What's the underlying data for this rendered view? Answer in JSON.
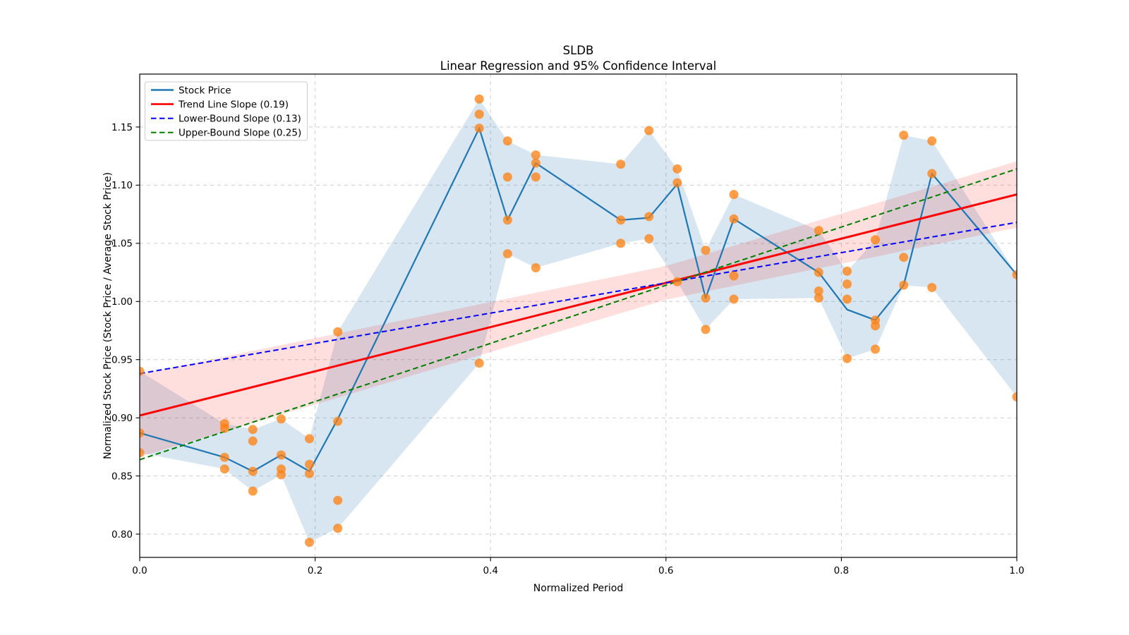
{
  "title": {
    "line1": "SLDB",
    "line2": "Linear Regression and 95% Confidence Interval"
  },
  "axes": {
    "xlabel": "Normalized Period",
    "ylabel": "Normalized Stock Price (Stock Price / Average Stock Price)",
    "xlim": [
      0.0,
      1.0
    ],
    "ylim": [
      0.78,
      1.1955
    ],
    "grid": true,
    "x_ticks": [
      {
        "v": 0.0,
        "label": "0.0"
      },
      {
        "v": 0.2,
        "label": "0.2"
      },
      {
        "v": 0.4,
        "label": "0.4"
      },
      {
        "v": 0.6,
        "label": "0.6"
      },
      {
        "v": 0.8,
        "label": "0.8"
      },
      {
        "v": 1.0,
        "label": "1.0"
      }
    ],
    "y_ticks": [
      {
        "v": 0.8,
        "label": "0.80"
      },
      {
        "v": 0.85,
        "label": "0.85"
      },
      {
        "v": 0.9,
        "label": "0.90"
      },
      {
        "v": 0.95,
        "label": "0.95"
      },
      {
        "v": 1.0,
        "label": "1.00"
      },
      {
        "v": 1.05,
        "label": "1.05"
      },
      {
        "v": 1.1,
        "label": "1.10"
      },
      {
        "v": 1.15,
        "label": "1.15"
      }
    ]
  },
  "legend": {
    "position": "upper-left",
    "items": [
      {
        "label": "Stock Price",
        "color": "#1f77b4",
        "dash": "solid"
      },
      {
        "label": "Trend Line Slope (0.19)",
        "color": "#ff0000",
        "dash": "solid"
      },
      {
        "label": "Lower-Bound Slope (0.13)",
        "color": "#0000ff",
        "dash": "dashed"
      },
      {
        "label": "Upper-Bound Slope (0.25)",
        "color": "#008000",
        "dash": "dashed"
      }
    ]
  },
  "chart_data": {
    "type": "line",
    "series": [
      {
        "name": "Stock Price",
        "style": "line",
        "color": "#1f77b4",
        "width": 2.2,
        "x": [
          0.0,
          0.0968,
          0.129,
          0.1613,
          0.1935,
          0.2258,
          0.3871,
          0.4194,
          0.4516,
          0.5484,
          0.5806,
          0.6129,
          0.6452,
          0.6774,
          0.7742,
          0.8065,
          0.8387,
          0.871,
          0.9032,
          1.0
        ],
        "y": [
          0.887,
          0.866,
          0.854,
          0.868,
          0.854,
          0.899,
          1.149,
          1.07,
          1.119,
          1.07,
          1.072,
          1.101,
          1.003,
          1.071,
          1.025,
          0.993,
          0.984,
          1.014,
          1.11,
          1.023
        ]
      },
      {
        "name": "Trend Line Slope (0.19)",
        "style": "line",
        "color": "#ff0000",
        "width": 3,
        "slope": 0.19,
        "intercept": 0.902,
        "x": [
          0.0,
          1.0
        ],
        "y": [
          0.902,
          1.092
        ]
      },
      {
        "name": "Lower-Bound Slope (0.13)",
        "style": "dashed",
        "color": "#0000ff",
        "width": 2,
        "slope": 0.13,
        "intercept": 0.938,
        "x": [
          0.0,
          1.0
        ],
        "y": [
          0.938,
          1.068
        ]
      },
      {
        "name": "Upper-Bound Slope (0.25)",
        "style": "dashed",
        "color": "#008000",
        "width": 2,
        "slope": 0.25,
        "intercept": 0.864,
        "x": [
          0.0,
          1.0
        ],
        "y": [
          0.864,
          1.114
        ]
      },
      {
        "name": "stock-price-scatter",
        "style": "scatter",
        "color": "#ff7f0e",
        "opacity": 0.75,
        "radius": 6.5,
        "points": [
          [
            0.0,
            0.94
          ],
          [
            0.0,
            0.887
          ],
          [
            0.0,
            0.87
          ],
          [
            0.0968,
            0.895
          ],
          [
            0.0968,
            0.891
          ],
          [
            0.0968,
            0.866
          ],
          [
            0.0968,
            0.856
          ],
          [
            0.129,
            0.89
          ],
          [
            0.129,
            0.88
          ],
          [
            0.129,
            0.854
          ],
          [
            0.129,
            0.837
          ],
          [
            0.1613,
            0.899
          ],
          [
            0.1613,
            0.868
          ],
          [
            0.1613,
            0.856
          ],
          [
            0.1613,
            0.851
          ],
          [
            0.1935,
            0.882
          ],
          [
            0.1935,
            0.86
          ],
          [
            0.1935,
            0.852
          ],
          [
            0.1935,
            0.793
          ],
          [
            0.2258,
            0.974
          ],
          [
            0.2258,
            0.897
          ],
          [
            0.2258,
            0.829
          ],
          [
            0.2258,
            0.805
          ],
          [
            0.3871,
            1.174
          ],
          [
            0.3871,
            1.161
          ],
          [
            0.3871,
            1.149
          ],
          [
            0.3871,
            0.947
          ],
          [
            0.4194,
            1.138
          ],
          [
            0.4194,
            1.107
          ],
          [
            0.4194,
            1.07
          ],
          [
            0.4194,
            1.041
          ],
          [
            0.4516,
            1.126
          ],
          [
            0.4516,
            1.119
          ],
          [
            0.4516,
            1.107
          ],
          [
            0.4516,
            1.029
          ],
          [
            0.5484,
            1.118
          ],
          [
            0.5484,
            1.07
          ],
          [
            0.5484,
            1.05
          ],
          [
            0.5806,
            1.147
          ],
          [
            0.5806,
            1.073
          ],
          [
            0.5806,
            1.054
          ],
          [
            0.6129,
            1.114
          ],
          [
            0.6129,
            1.102
          ],
          [
            0.6129,
            1.017
          ],
          [
            0.6452,
            1.044
          ],
          [
            0.6452,
            1.003
          ],
          [
            0.6452,
            0.976
          ],
          [
            0.6774,
            1.092
          ],
          [
            0.6774,
            1.071
          ],
          [
            0.6774,
            1.022
          ],
          [
            0.6774,
            1.002
          ],
          [
            0.7742,
            1.061
          ],
          [
            0.7742,
            1.025
          ],
          [
            0.7742,
            1.009
          ],
          [
            0.7742,
            1.003
          ],
          [
            0.8065,
            1.026
          ],
          [
            0.8065,
            1.015
          ],
          [
            0.8065,
            1.002
          ],
          [
            0.8065,
            0.951
          ],
          [
            0.8387,
            1.053
          ],
          [
            0.8387,
            0.984
          ],
          [
            0.8387,
            0.979
          ],
          [
            0.8387,
            0.959
          ],
          [
            0.871,
            1.143
          ],
          [
            0.871,
            1.038
          ],
          [
            0.871,
            1.014
          ],
          [
            0.9032,
            1.138
          ],
          [
            0.9032,
            1.11
          ],
          [
            0.9032,
            1.012
          ],
          [
            1.0,
            1.023
          ],
          [
            1.0,
            0.918
          ]
        ]
      }
    ],
    "bands": [
      {
        "name": "stock-price-range-band",
        "color": "#1f77b4",
        "opacity": 0.18,
        "x": [
          0.0,
          0.0968,
          0.129,
          0.1613,
          0.1935,
          0.2258,
          0.3871,
          0.4194,
          0.4516,
          0.5484,
          0.5806,
          0.6129,
          0.6452,
          0.6774,
          0.7742,
          0.8065,
          0.8387,
          0.871,
          0.9032,
          1.0
        ],
        "upper": [
          0.94,
          0.895,
          0.89,
          0.899,
          0.882,
          0.974,
          1.174,
          1.138,
          1.126,
          1.118,
          1.147,
          1.114,
          1.044,
          1.092,
          1.061,
          1.026,
          1.053,
          1.143,
          1.138,
          1.023
        ],
        "lower": [
          0.87,
          0.856,
          0.837,
          0.851,
          0.793,
          0.805,
          0.947,
          1.041,
          1.029,
          1.05,
          1.054,
          1.017,
          0.976,
          1.002,
          1.003,
          0.951,
          0.959,
          1.014,
          1.012,
          0.918
        ]
      },
      {
        "name": "confidence-interval-band",
        "color": "#ff0000",
        "opacity": 0.13,
        "x": [
          0.0,
          0.1,
          0.2,
          0.3,
          0.4,
          0.5,
          0.6,
          0.7,
          0.8,
          0.9,
          1.0
        ],
        "upper": [
          0.9375,
          0.953,
          0.9685,
          0.984,
          0.9995,
          1.015,
          1.0305,
          1.053,
          1.0755,
          1.098,
          1.1205
        ],
        "lower": [
          0.8665,
          0.889,
          0.9115,
          0.934,
          0.9565,
          0.979,
          1.0015,
          1.017,
          1.0325,
          1.048,
          1.0635
        ]
      }
    ]
  }
}
